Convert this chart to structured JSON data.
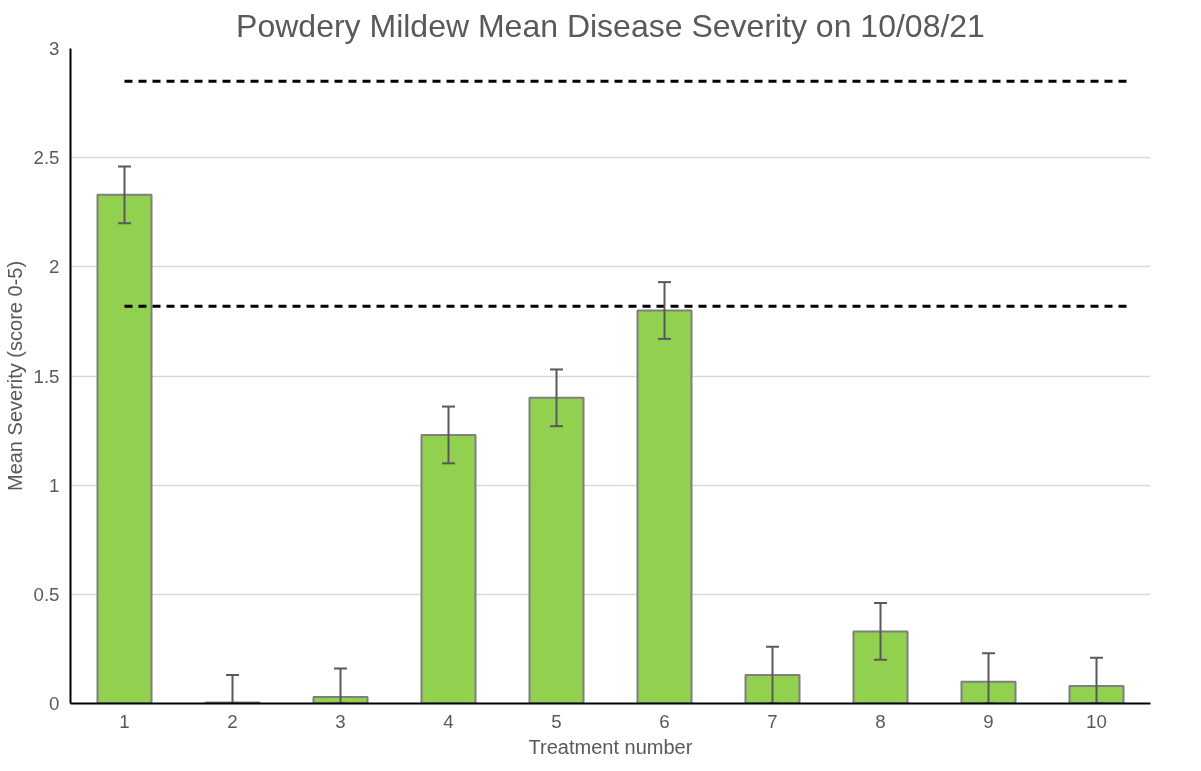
{
  "chart_data": {
    "type": "bar",
    "title": "Powdery Mildew Mean Disease Severity on 10/08/21",
    "xlabel": "Treatment number",
    "ylabel": "Mean Severity (score 0-5)",
    "categories": [
      "1",
      "2",
      "3",
      "4",
      "5",
      "6",
      "7",
      "8",
      "9",
      "10"
    ],
    "values": [
      2.33,
      0.005,
      0.03,
      1.23,
      1.4,
      1.8,
      0.13,
      0.33,
      0.1,
      0.08
    ],
    "errors": [
      0.13,
      [
        0,
        0.13
      ],
      [
        0,
        0.16
      ],
      0.13,
      0.13,
      0.13,
      [
        0,
        0.26
      ],
      0.13,
      [
        0,
        0.23
      ],
      [
        0,
        0.21
      ]
    ],
    "color": "#92d050",
    "ylim": [
      0,
      3
    ],
    "yticks": [
      0,
      0.5,
      1,
      1.5,
      2,
      2.5,
      3
    ],
    "grid": "y",
    "ref_lines": [
      {
        "axis": "y",
        "value": 2.85,
        "color": "#000000",
        "line_style": "dashed"
      },
      {
        "axis": "y",
        "value": 1.82,
        "color": "#000000",
        "line_style": "dashed"
      }
    ]
  }
}
